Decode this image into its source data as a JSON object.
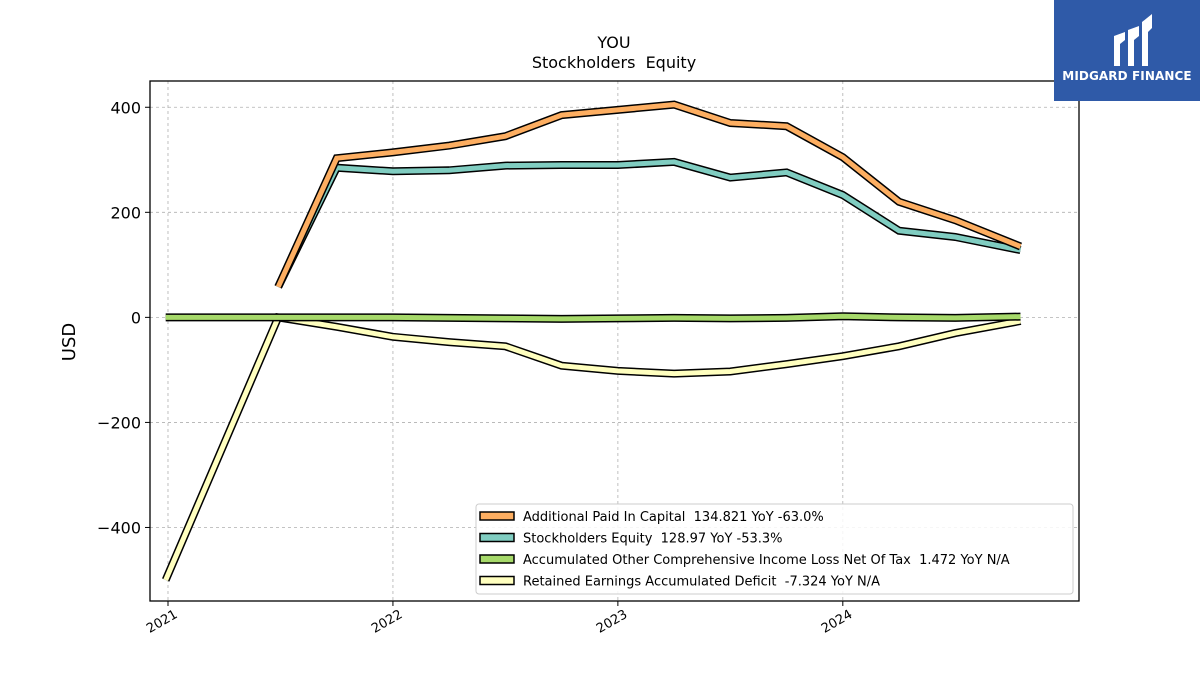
{
  "logo": {
    "text": "MIDGARD FINANCE",
    "icon": "midgard-m-logo",
    "color": "#2f5aa8"
  },
  "chart_data": {
    "type": "line",
    "title": "YOU",
    "subtitle": "Stockholders  Equity",
    "xlabel": "",
    "ylabel": "USD",
    "xlim": [
      2020.92,
      2025.05
    ],
    "ylim": [
      -540,
      450
    ],
    "x_ticks": [
      2021,
      2022,
      2023,
      2024
    ],
    "x_tick_labels": [
      "2021",
      "2022",
      "2023",
      "2024"
    ],
    "y_ticks": [
      -400,
      -200,
      0,
      200,
      400
    ],
    "y_tick_labels": [
      "−400",
      "−200",
      "0",
      "200",
      "400"
    ],
    "grid": true,
    "legend_position": "bottom-right",
    "x": [
      2020.99,
      2021.49,
      2021.75,
      2022.0,
      2022.25,
      2022.5,
      2022.75,
      2023.0,
      2023.25,
      2023.5,
      2023.75,
      2024.0,
      2024.25,
      2024.5,
      2024.79
    ],
    "series": [
      {
        "name": "Additional Paid In Capital  134.821 YoY -63.0%",
        "color": "#fdae61",
        "values": [
          null,
          58,
          303,
          314,
          327,
          345,
          385,
          395,
          405,
          370,
          364,
          305,
          220,
          185,
          135
        ]
      },
      {
        "name": "Stockholders Equity  128.97 YoY -53.3%",
        "color": "#80cdc1",
        "values": [
          null,
          58,
          285,
          278,
          280,
          289,
          290,
          290,
          296,
          266,
          276,
          233,
          165,
          153,
          128
        ]
      },
      {
        "name": "Accumulated Other Comprehensive Income Loss Net Of Tax  1.472 YoY N/A",
        "color": "#a6d96a",
        "values": [
          0,
          0,
          0,
          0,
          -1,
          -2,
          -3,
          -2,
          -1,
          -2,
          -1,
          2,
          0,
          -1,
          1.5
        ]
      },
      {
        "name": "Retained Earnings Accumulated Deficit  -7.324 YoY N/A",
        "color": "#ffffbf",
        "values": [
          -500,
          0,
          -18,
          -37,
          -47,
          -55,
          -92,
          -102,
          -107,
          -103,
          -89,
          -74,
          -55,
          -30,
          -7
        ]
      }
    ]
  }
}
